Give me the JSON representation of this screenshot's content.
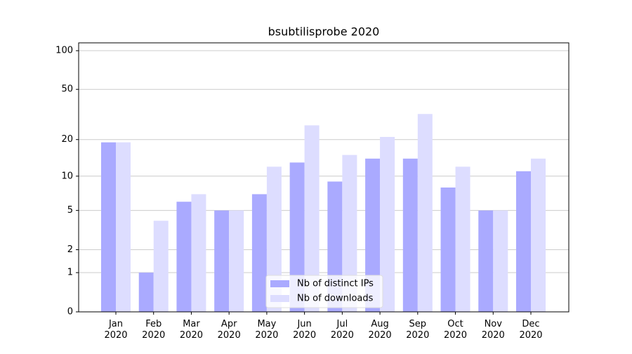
{
  "chart_data": {
    "type": "bar",
    "title": "bsubtilisprobe 2020",
    "categories": [
      "Jan 2020",
      "Feb 2020",
      "Mar 2020",
      "Apr 2020",
      "May 2020",
      "Jun 2020",
      "Jul 2020",
      "Aug 2020",
      "Sep 2020",
      "Oct 2020",
      "Nov 2020",
      "Dec 2020"
    ],
    "series": [
      {
        "name": "Nb of distinct IPs",
        "color": "#aaaaff",
        "values": [
          19,
          1,
          6,
          5,
          7,
          13,
          9,
          14,
          14,
          8,
          5,
          11
        ]
      },
      {
        "name": "Nb of downloads",
        "color": "#ddddff",
        "values": [
          19,
          4,
          7,
          5,
          12,
          26,
          15,
          21,
          32,
          12,
          5,
          14
        ]
      }
    ],
    "yscale": "log1p",
    "ylim": [
      0,
      115
    ],
    "yticks": [
      0,
      1,
      2,
      5,
      10,
      20,
      50,
      100
    ],
    "grid": true,
    "legend": "lower center"
  }
}
